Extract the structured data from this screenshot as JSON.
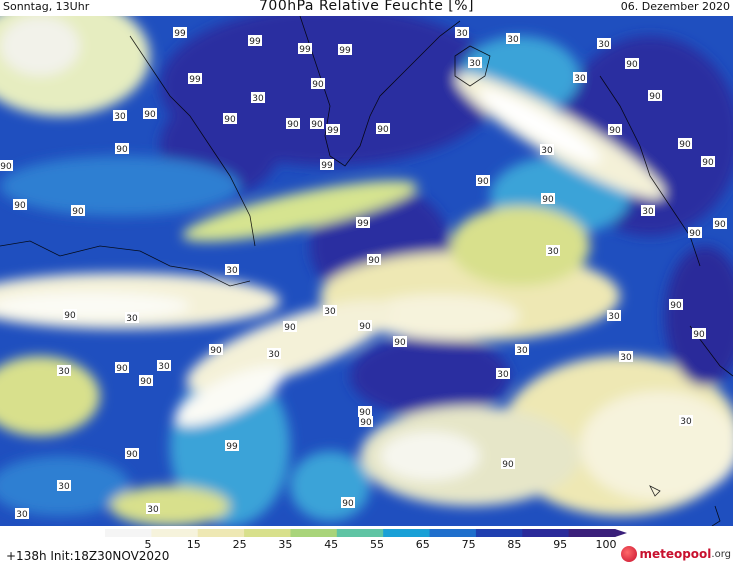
{
  "header": {
    "left": "Sonntag, 13Uhr",
    "title": "700hPa Relative Feuchte [%]",
    "right": "06. Dezember 2020"
  },
  "footer": {
    "init": "+138h  Init:18Z30NOV2020",
    "logo_main": "meteopool",
    "logo_suffix": ".org"
  },
  "colorbar": {
    "ticks": [
      "5",
      "15",
      "25",
      "35",
      "45",
      "55",
      "65",
      "75",
      "85",
      "95",
      "100"
    ],
    "colors": [
      "#f5f5f5",
      "#f6f3dc",
      "#eee8b4",
      "#d8e08c",
      "#a9d47a",
      "#5fc4a4",
      "#1aa0d6",
      "#1f6fcc",
      "#1f3fb0",
      "#2a2a9a",
      "#3a1f7a"
    ]
  },
  "contour_labels": [
    "99",
    "99",
    "99",
    "99",
    "90",
    "30",
    "30",
    "99",
    "90",
    "90",
    "30",
    "90",
    "30",
    "90",
    "99",
    "90",
    "90",
    "99",
    "90",
    "90",
    "90",
    "99",
    "90",
    "90",
    "30",
    "30",
    "90",
    "30",
    "90",
    "90",
    "90",
    "90",
    "90",
    "90",
    "30",
    "30",
    "90",
    "30",
    "90",
    "30",
    "30",
    "90",
    "90",
    "90",
    "30",
    "30",
    "90",
    "30",
    "30",
    "90",
    "30",
    "90",
    "30",
    "90",
    "90",
    "99",
    "90",
    "30",
    "30",
    "30",
    "90",
    "30",
    "90",
    "90",
    "90",
    "30",
    "30"
  ]
}
